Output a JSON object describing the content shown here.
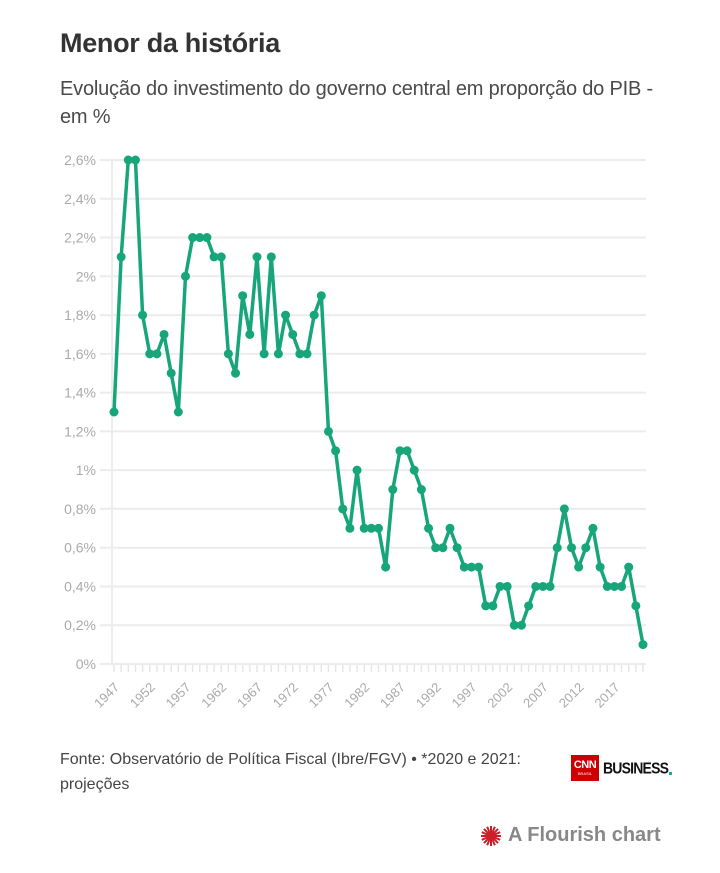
{
  "header": {
    "title": "Menor da história",
    "subtitle": "Evolução do investimento do governo central em proporção do PIB - em %"
  },
  "chart_data": {
    "type": "line",
    "title": "Menor da história",
    "subtitle": "Evolução do investimento do governo central em proporção do PIB - em %",
    "xlabel": "",
    "ylabel": "",
    "ylim": [
      0,
      2.6
    ],
    "grid": true,
    "legend": "none",
    "line_color": "#16a67a",
    "y_ticks": [
      {
        "value": 0,
        "label": "0%"
      },
      {
        "value": 0.2,
        "label": "0,2%"
      },
      {
        "value": 0.4,
        "label": "0,4%"
      },
      {
        "value": 0.6,
        "label": "0,6%"
      },
      {
        "value": 0.8,
        "label": "0,8%"
      },
      {
        "value": 1.0,
        "label": "1%"
      },
      {
        "value": 1.2,
        "label": "1,2%"
      },
      {
        "value": 1.4,
        "label": "1,4%"
      },
      {
        "value": 1.6,
        "label": "1,6%"
      },
      {
        "value": 1.8,
        "label": "1,8%"
      },
      {
        "value": 2.0,
        "label": "2%"
      },
      {
        "value": 2.2,
        "label": "2,2%"
      },
      {
        "value": 2.4,
        "label": "2,4%"
      },
      {
        "value": 2.6,
        "label": "2,6%"
      }
    ],
    "x_tick_labels": [
      "1947",
      "1952",
      "1957",
      "1962",
      "1967",
      "1972",
      "1977",
      "1982",
      "1987",
      "1992",
      "1997",
      "2002",
      "2007",
      "2012",
      "2017"
    ],
    "x": [
      1947,
      1948,
      1949,
      1950,
      1951,
      1952,
      1953,
      1954,
      1955,
      1956,
      1957,
      1958,
      1959,
      1960,
      1961,
      1962,
      1963,
      1964,
      1965,
      1966,
      1967,
      1968,
      1969,
      1970,
      1971,
      1972,
      1973,
      1974,
      1975,
      1976,
      1977,
      1978,
      1979,
      1980,
      1981,
      1982,
      1983,
      1984,
      1985,
      1986,
      1987,
      1988,
      1989,
      1990,
      1991,
      1992,
      1993,
      1994,
      1995,
      1996,
      1997,
      1998,
      1999,
      2000,
      2001,
      2002,
      2003,
      2004,
      2005,
      2006,
      2007,
      2008,
      2009,
      2010,
      2011,
      2012,
      2013,
      2014,
      2015,
      2016,
      2017,
      2018,
      2019,
      2020,
      2021
    ],
    "series": [
      {
        "name": "Investimento do governo central (% do PIB)",
        "values": [
          1.3,
          2.1,
          2.6,
          2.6,
          1.8,
          1.6,
          1.6,
          1.7,
          1.5,
          1.3,
          2.0,
          2.2,
          2.2,
          2.2,
          2.1,
          2.1,
          1.6,
          1.5,
          1.9,
          1.7,
          2.1,
          1.6,
          2.1,
          1.6,
          1.8,
          1.7,
          1.6,
          1.6,
          1.8,
          1.9,
          1.2,
          1.1,
          0.8,
          0.7,
          1.0,
          0.7,
          0.7,
          0.7,
          0.5,
          0.9,
          1.1,
          1.1,
          1.0,
          0.9,
          0.7,
          0.6,
          0.6,
          0.7,
          0.6,
          0.5,
          0.5,
          0.5,
          0.3,
          0.3,
          0.4,
          0.4,
          0.2,
          0.2,
          0.3,
          0.4,
          0.4,
          0.4,
          0.6,
          0.8,
          0.6,
          0.5,
          0.6,
          0.7,
          0.5,
          0.4,
          0.4,
          0.4,
          0.5,
          0.3,
          0.1
        ]
      }
    ]
  },
  "footer": {
    "source": "Fonte: Observatório de Política Fiscal (Ibre/FGV) • *2020 e 2021: projeções",
    "logo_cnn": "CNN",
    "logo_brasil": "BRASIL",
    "logo_business": "BUSINESS",
    "flourish_credit": "A Flourish chart"
  }
}
